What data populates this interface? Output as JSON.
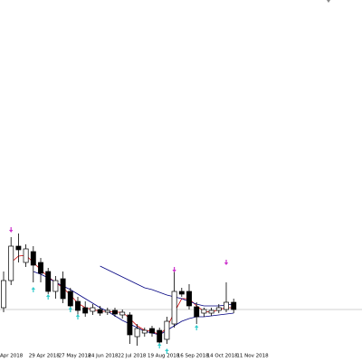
{
  "chart_data": {
    "type": "candlestick",
    "categories": [
      "Apr 2018",
      null,
      null,
      null,
      "29 Apr 2018",
      null,
      null,
      null,
      "27 May 2018",
      null,
      null,
      null,
      "24 Jun 2018",
      null,
      null,
      null,
      "22 Jul 2018",
      null,
      null,
      null,
      "19 Aug 2018",
      null,
      null,
      null,
      "16 Sep 2018",
      null,
      null,
      null,
      "14 Oct 2018",
      null,
      null,
      null,
      "11 Nov 2018"
    ],
    "open": [
      60,
      90,
      128,
      110,
      122,
      110,
      100,
      78,
      92,
      78,
      67,
      60,
      56,
      58,
      55,
      57,
      52,
      52,
      28,
      32,
      37,
      35,
      25,
      42,
      78,
      78,
      61,
      54,
      54,
      57,
      58,
      66,
      null
    ],
    "high": [
      100,
      138,
      142,
      130,
      128,
      115,
      104,
      95,
      100,
      82,
      72,
      67,
      64,
      62,
      60,
      60,
      58,
      55,
      42,
      38,
      40,
      38,
      50,
      100,
      82,
      86,
      66,
      60,
      60,
      64,
      88,
      70,
      null
    ],
    "low": [
      55,
      85,
      110,
      105,
      88,
      88,
      75,
      70,
      65,
      55,
      50,
      50,
      52,
      51,
      52,
      50,
      48,
      20,
      18,
      28,
      28,
      20,
      20,
      38,
      72,
      58,
      42,
      50,
      51,
      54,
      55,
      54,
      null
    ],
    "close": [
      90,
      128,
      124,
      125,
      107,
      98,
      78,
      90,
      70,
      62,
      57,
      54,
      60,
      54,
      57,
      53,
      55,
      30,
      37,
      35,
      32,
      22,
      45,
      78,
      75,
      62,
      50,
      58,
      57,
      60,
      66,
      58,
      null
    ],
    "up_color": "#ffffff",
    "down_color": "#000000",
    "series": [
      {
        "color": "#cc0000",
        "values": [
          null,
          110,
          117,
          118,
          110,
          102,
          94,
          88,
          82,
          74,
          65,
          60,
          58,
          56,
          56,
          55,
          55,
          48,
          40,
          35,
          34,
          30,
          38,
          55,
          70,
          70,
          62,
          56,
          55,
          58,
          60,
          60,
          null
        ]
      },
      {
        "color": "#000080",
        "values": [
          null,
          null,
          null,
          null,
          null,
          null,
          null,
          null,
          null,
          null,
          null,
          null,
          null,
          106,
          102,
          98,
          94,
          90,
          86,
          82,
          80,
          77,
          74,
          72,
          70,
          67,
          64,
          62,
          62,
          62,
          63,
          64,
          null
        ]
      },
      {
        "color": "#000080",
        "values": [
          null,
          null,
          null,
          null,
          100,
          97,
          93,
          88,
          84,
          80,
          75,
          70,
          65,
          60,
          56,
          51,
          46,
          42,
          38,
          34,
          32,
          30,
          35,
          40,
          45,
          48,
          50,
          50,
          51,
          52,
          53,
          54,
          null
        ]
      }
    ],
    "down_arrows": {
      "color": "#cc33cc",
      "values": [
        null,
        146,
        null,
        null,
        null,
        null,
        null,
        null,
        null,
        null,
        null,
        null,
        null,
        null,
        null,
        null,
        null,
        null,
        null,
        null,
        null,
        null,
        null,
        102,
        null,
        null,
        null,
        null,
        null,
        null,
        110,
        null,
        null
      ]
    },
    "up_arrows": {
      "color": "#33cccc",
      "values": [
        null,
        null,
        null,
        null,
        80,
        null,
        72,
        null,
        null,
        58,
        50,
        null,
        null,
        null,
        null,
        null,
        null,
        null,
        null,
        null,
        null,
        18,
        12,
        null,
        null,
        null,
        38,
        null,
        null,
        null,
        null,
        null,
        null
      ]
    },
    "price_line": 58,
    "ylim": [
      0,
      400
    ]
  }
}
